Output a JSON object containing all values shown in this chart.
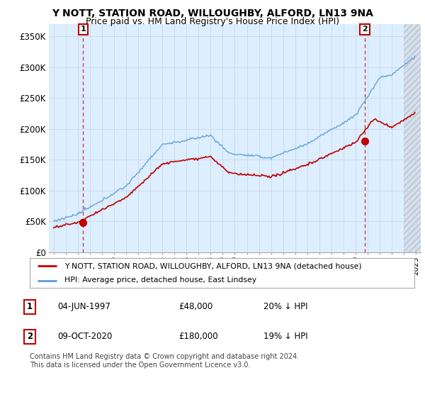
{
  "title": "Y NOTT, STATION ROAD, WILLOUGHBY, ALFORD, LN13 9NA",
  "subtitle": "Price paid vs. HM Land Registry's House Price Index (HPI)",
  "ylim": [
    0,
    370000
  ],
  "yticks": [
    0,
    50000,
    100000,
    150000,
    200000,
    250000,
    300000,
    350000
  ],
  "ytick_labels": [
    "£0",
    "£50K",
    "£100K",
    "£150K",
    "£200K",
    "£250K",
    "£300K",
    "£350K"
  ],
  "xlim_start": 1994.6,
  "xlim_end": 2025.4,
  "sale1_year": 1997.43,
  "sale1_price": 48000,
  "sale2_year": 2020.77,
  "sale2_price": 180000,
  "hpi_color": "#5b9bd5",
  "price_color": "#c00000",
  "grid_color": "#c8d8e8",
  "bg_color": "#ddeeff",
  "hatch_bg": "#d0d8e0",
  "plot_bg": "#ffffff",
  "legend_label1": "Y NOTT, STATION ROAD, WILLOUGHBY, ALFORD, LN13 9NA (detached house)",
  "legend_label2": "HPI: Average price, detached house, East Lindsey",
  "footnote": "Contains HM Land Registry data © Crown copyright and database right 2024.\nThis data is licensed under the Open Government Licence v3.0.",
  "title_fontsize": 10,
  "subtitle_fontsize": 9
}
